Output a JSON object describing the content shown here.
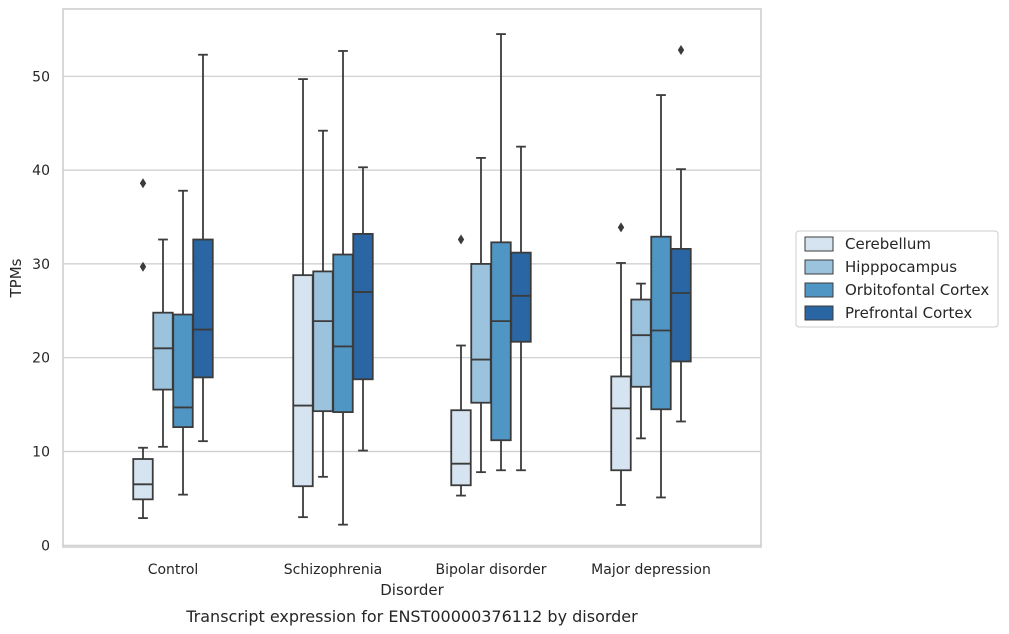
{
  "chart_data": {
    "type": "box",
    "title": "",
    "caption": "Transcript expression for ENST00000376112 by disorder",
    "xlabel": "Disorder",
    "ylabel": "TPMs",
    "ylim": [
      -0.3,
      57
    ],
    "yticks": [
      0,
      10,
      20,
      30,
      40,
      50
    ],
    "grid": "horizontal",
    "legend_position": "right",
    "categories": [
      "Control",
      "Schizophrenia",
      "Bipolar disorder",
      "Major depression"
    ],
    "series": [
      {
        "name": "Cerebellum",
        "color": "#d6e4f1",
        "boxes": [
          {
            "whisker_low": 2.9,
            "q1": 4.9,
            "median": 6.5,
            "q3": 9.2,
            "whisker_high": 10.4,
            "outliers": [
              29.7,
              38.6
            ]
          },
          {
            "whisker_low": 3.0,
            "q1": 6.3,
            "median": 14.9,
            "q3": 28.8,
            "whisker_high": 49.7,
            "outliers": []
          },
          {
            "whisker_low": 5.3,
            "q1": 6.4,
            "median": 8.7,
            "q3": 14.4,
            "whisker_high": 21.3,
            "outliers": [
              32.6
            ]
          },
          {
            "whisker_low": 4.3,
            "q1": 8.0,
            "median": 14.6,
            "q3": 18.0,
            "whisker_high": 30.1,
            "outliers": [
              33.9
            ]
          }
        ]
      },
      {
        "name": "Hipppocampus",
        "color": "#9cc3dd",
        "boxes": [
          {
            "whisker_low": 10.5,
            "q1": 16.6,
            "median": 21.0,
            "q3": 24.8,
            "whisker_high": 32.6,
            "outliers": []
          },
          {
            "whisker_low": 7.3,
            "q1": 14.3,
            "median": 23.9,
            "q3": 29.2,
            "whisker_high": 44.2,
            "outliers": []
          },
          {
            "whisker_low": 7.8,
            "q1": 15.2,
            "median": 19.8,
            "q3": 30.0,
            "whisker_high": 41.3,
            "outliers": []
          },
          {
            "whisker_low": 11.4,
            "q1": 16.9,
            "median": 22.4,
            "q3": 26.2,
            "whisker_high": 27.9,
            "outliers": []
          }
        ]
      },
      {
        "name": "Orbitofontal Cortex",
        "color": "#5096c5",
        "boxes": [
          {
            "whisker_low": 5.4,
            "q1": 12.6,
            "median": 14.7,
            "q3": 24.6,
            "whisker_high": 37.8,
            "outliers": []
          },
          {
            "whisker_low": 2.2,
            "q1": 14.2,
            "median": 21.2,
            "q3": 31.0,
            "whisker_high": 52.7,
            "outliers": []
          },
          {
            "whisker_low": 8.0,
            "q1": 11.2,
            "median": 23.9,
            "q3": 32.3,
            "whisker_high": 54.5,
            "outliers": []
          },
          {
            "whisker_low": 5.1,
            "q1": 14.5,
            "median": 22.9,
            "q3": 32.9,
            "whisker_high": 48.0,
            "outliers": []
          }
        ]
      },
      {
        "name": "Prefrontal Cortex",
        "color": "#2a66a3",
        "boxes": [
          {
            "whisker_low": 11.1,
            "q1": 17.9,
            "median": 23.0,
            "q3": 32.6,
            "whisker_high": 52.3,
            "outliers": []
          },
          {
            "whisker_low": 10.1,
            "q1": 17.7,
            "median": 27.0,
            "q3": 33.2,
            "whisker_high": 40.3,
            "outliers": []
          },
          {
            "whisker_low": 8.0,
            "q1": 21.7,
            "median": 26.6,
            "q3": 31.2,
            "whisker_high": 42.5,
            "outliers": []
          },
          {
            "whisker_low": 13.2,
            "q1": 19.6,
            "median": 26.9,
            "q3": 31.6,
            "whisker_high": 40.1,
            "outliers": [
              52.8
            ]
          }
        ]
      }
    ]
  }
}
